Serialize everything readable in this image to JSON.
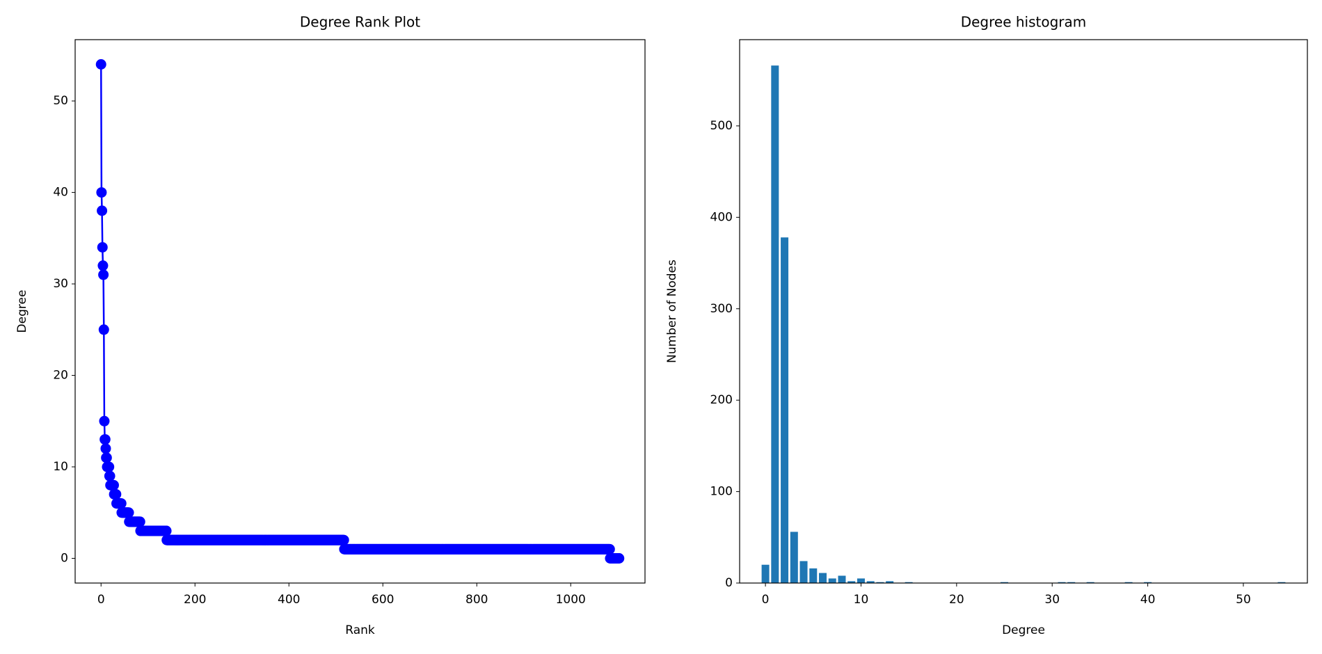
{
  "chart_data": [
    {
      "type": "line",
      "title": "Degree Rank Plot",
      "xlabel": "Rank",
      "ylabel": "Degree",
      "color": "#0000ff",
      "xlim": [
        -55.15,
        1158.15
      ],
      "ylim": [
        -2.7,
        56.7
      ],
      "xticks": [
        0,
        200,
        400,
        600,
        800,
        1000
      ],
      "yticks": [
        0,
        10,
        20,
        30,
        40,
        50
      ],
      "values": [
        54,
        40,
        38,
        34,
        32,
        31,
        25,
        15,
        13,
        13,
        12,
        11,
        11,
        10,
        10,
        10,
        10,
        10,
        9,
        9,
        8,
        8,
        8,
        8,
        8,
        8,
        8,
        8,
        7,
        7,
        7,
        7,
        7,
        6,
        6,
        6,
        6,
        6,
        6,
        6,
        6,
        6,
        6,
        6,
        5,
        5,
        5,
        5,
        5,
        5,
        5,
        5,
        5,
        5,
        5,
        5,
        5,
        5,
        5,
        5,
        4,
        4,
        4,
        4,
        4,
        4,
        4,
        4,
        4,
        4,
        4,
        4,
        4,
        4,
        4,
        4,
        4,
        4,
        4,
        4,
        4,
        4,
        4,
        4,
        3,
        3,
        3,
        3,
        3,
        3,
        3,
        3,
        3,
        3,
        3,
        3,
        3,
        3,
        3,
        3,
        3,
        3,
        3,
        3,
        3,
        3,
        3,
        3,
        3,
        3,
        3,
        3,
        3,
        3,
        3,
        3,
        3,
        3,
        3,
        3,
        3,
        3,
        3,
        3,
        3,
        3,
        3,
        3,
        3,
        3,
        3,
        3,
        3,
        3,
        3,
        3,
        3,
        3,
        3,
        3,
        2,
        2,
        2,
        2,
        2,
        2,
        2,
        2,
        2,
        2,
        2,
        2,
        2,
        2,
        2,
        2,
        2,
        2,
        2,
        2,
        2,
        2,
        2,
        2,
        2,
        2,
        2,
        2,
        2,
        2,
        2,
        2,
        2,
        2,
        2,
        2,
        2,
        2,
        2,
        2,
        2,
        2,
        2,
        2,
        2,
        2,
        2,
        2,
        2,
        2,
        2,
        2,
        2,
        2,
        2,
        2,
        2,
        2,
        2,
        2,
        2,
        2,
        2,
        2,
        2,
        2,
        2,
        2,
        2,
        2,
        2,
        2,
        2,
        2,
        2,
        2,
        2,
        2,
        2,
        2,
        2,
        2,
        2,
        2,
        2,
        2,
        2,
        2,
        2,
        2,
        2,
        2,
        2,
        2,
        2,
        2,
        2,
        2,
        2,
        2,
        2,
        2,
        2,
        2,
        2,
        2,
        2,
        2,
        2,
        2,
        2,
        2,
        2,
        2,
        2,
        2,
        2,
        2,
        2,
        2,
        2,
        2,
        2,
        2,
        2,
        2,
        2,
        2,
        2,
        2,
        2,
        2,
        2,
        2,
        2,
        2,
        2,
        2,
        2,
        2,
        2,
        2,
        2,
        2,
        2,
        2,
        2,
        2,
        2,
        2,
        2,
        2,
        2,
        2,
        2,
        2,
        2,
        2,
        2,
        2,
        2,
        2,
        2,
        2,
        2,
        2,
        2,
        2,
        2,
        2,
        2,
        2,
        2,
        2,
        2,
        2,
        2,
        2,
        2,
        2,
        2,
        2,
        2,
        2,
        2,
        2,
        2,
        2,
        2,
        2,
        2,
        2,
        2,
        2,
        2,
        2,
        2,
        2,
        2,
        2,
        2,
        2,
        2,
        2,
        2,
        2,
        2,
        2,
        2,
        2,
        2,
        2,
        2,
        2,
        2,
        2,
        2,
        2,
        2,
        2,
        2,
        2,
        2,
        2,
        2,
        2,
        2,
        2,
        2,
        2,
        2,
        2,
        2,
        2,
        2,
        2,
        2,
        2,
        2,
        2,
        2,
        2,
        2,
        2,
        2,
        2,
        2,
        2,
        2,
        2,
        2,
        2,
        2,
        2,
        2,
        2,
        2,
        2,
        2,
        2,
        2,
        2,
        2,
        2,
        2,
        2,
        2,
        2,
        2,
        2,
        2,
        2,
        2,
        2,
        2,
        2,
        2,
        2,
        2,
        2,
        2,
        2,
        2,
        2,
        2,
        2,
        2,
        2,
        2,
        2,
        2,
        2,
        2,
        2,
        2,
        2,
        2,
        2,
        2,
        2,
        2,
        2,
        2,
        2,
        2,
        2,
        2,
        2,
        2,
        2,
        2,
        2,
        2,
        2,
        2,
        2,
        2,
        2,
        2,
        2,
        2,
        2,
        2,
        2,
        2,
        2,
        2,
        2,
        2,
        2,
        2,
        2,
        2,
        2,
        2,
        2,
        2,
        2,
        2,
        2,
        2,
        2,
        2,
        2,
        2,
        2,
        2,
        2,
        2,
        2,
        2,
        2,
        2,
        2,
        2,
        2,
        2,
        2,
        2,
        2,
        2,
        2,
        2,
        2,
        2,
        2,
        2,
        2,
        2,
        2,
        2,
        2,
        2,
        2,
        2,
        2,
        2,
        2,
        1,
        1,
        1,
        1,
        1,
        1,
        1,
        1,
        1,
        1,
        1,
        1,
        1,
        1,
        1,
        1,
        1,
        1,
        1,
        1,
        1,
        1,
        1,
        1,
        1,
        1,
        1,
        1,
        1,
        1,
        1,
        1,
        1,
        1,
        1,
        1,
        1,
        1,
        1,
        1,
        1,
        1,
        1,
        1,
        1,
        1,
        1,
        1,
        1,
        1,
        1,
        1,
        1,
        1,
        1,
        1,
        1,
        1,
        1,
        1,
        1,
        1,
        1,
        1,
        1,
        1,
        1,
        1,
        1,
        1,
        1,
        1,
        1,
        1,
        1,
        1,
        1,
        1,
        1,
        1,
        1,
        1,
        1,
        1,
        1,
        1,
        1,
        1,
        1,
        1,
        1,
        1,
        1,
        1,
        1,
        1,
        1,
        1,
        1,
        1,
        1,
        1,
        1,
        1,
        1,
        1,
        1,
        1,
        1,
        1,
        1,
        1,
        1,
        1,
        1,
        1,
        1,
        1,
        1,
        1,
        1,
        1,
        1,
        1,
        1,
        1,
        1,
        1,
        1,
        1,
        1,
        1,
        1,
        1,
        1,
        1,
        1,
        1,
        1,
        1,
        1,
        1,
        1,
        1,
        1,
        1,
        1,
        1,
        1,
        1,
        1,
        1,
        1,
        1,
        1,
        1,
        1,
        1,
        1,
        1,
        1,
        1,
        1,
        1,
        1,
        1,
        1,
        1,
        1,
        1,
        1,
        1,
        1,
        1,
        1,
        1,
        1,
        1,
        1,
        1,
        1,
        1,
        1,
        1,
        1,
        1,
        1,
        1,
        1,
        1,
        1,
        1,
        1,
        1,
        1,
        1,
        1,
        1,
        1,
        1,
        1,
        1,
        1,
        1,
        1,
        1,
        1,
        1,
        1,
        1,
        1,
        1,
        1,
        1,
        1,
        1,
        1,
        1,
        1,
        1,
        1,
        1,
        1,
        1,
        1,
        1,
        1,
        1,
        1,
        1,
        1,
        1,
        1,
        1,
        1,
        1,
        1,
        1,
        1,
        1,
        1,
        1,
        1,
        1,
        1,
        1,
        1,
        1,
        1,
        1,
        1,
        1,
        1,
        1,
        1,
        1,
        1,
        1,
        1,
        1,
        1,
        1,
        1,
        1,
        1,
        1,
        1,
        1,
        1,
        1,
        1,
        1,
        1,
        1,
        1,
        1,
        1,
        1,
        1,
        1,
        1,
        1,
        1,
        1,
        1,
        1,
        1,
        1,
        1,
        1,
        1,
        1,
        1,
        1,
        1,
        1,
        1,
        1,
        1,
        1,
        1,
        1,
        1,
        1,
        1,
        1,
        1,
        1,
        1,
        1,
        1,
        1,
        1,
        1,
        1,
        1,
        1,
        1,
        1,
        1,
        1,
        1,
        1,
        1,
        1,
        1,
        1,
        1,
        1,
        1,
        1,
        1,
        1,
        1,
        1,
        1,
        1,
        1,
        1,
        1,
        1,
        1,
        1,
        1,
        1,
        1,
        1,
        1,
        1,
        1,
        1,
        1,
        1,
        1,
        1,
        1,
        1,
        1,
        1,
        1,
        1,
        1,
        1,
        1,
        1,
        1,
        1,
        1,
        1,
        1,
        1,
        1,
        1,
        1,
        1,
        1,
        1,
        1,
        1,
        1,
        1,
        1,
        1,
        1,
        1,
        1,
        1,
        1,
        1,
        1,
        1,
        1,
        1,
        1,
        1,
        1,
        1,
        1,
        1,
        1,
        1,
        1,
        1,
        1,
        1,
        1,
        1,
        1,
        1,
        1,
        1,
        1,
        1,
        1,
        1,
        1,
        1,
        1,
        1,
        1,
        1,
        1,
        1,
        1,
        1,
        1,
        1,
        1,
        1,
        1,
        1,
        1,
        1,
        1,
        1,
        1,
        1,
        1,
        1,
        1,
        1,
        1,
        1,
        1,
        1,
        1,
        1,
        1,
        1,
        1,
        1,
        1,
        1,
        1,
        1,
        1,
        1,
        1,
        1,
        1,
        1,
        1,
        1,
        1,
        1,
        1,
        1,
        1,
        1,
        1,
        1,
        1,
        1,
        1,
        1,
        1,
        1,
        1,
        1,
        1,
        1,
        1,
        1,
        1,
        1,
        1,
        1,
        1,
        1,
        1,
        1,
        1,
        1,
        1,
        1,
        1,
        1,
        1,
        1,
        1,
        1,
        1,
        1,
        1,
        1,
        1,
        1,
        1,
        1,
        1,
        1,
        1,
        1,
        1,
        1,
        1,
        1,
        1,
        1,
        1,
        1,
        1,
        1,
        1,
        1,
        1,
        1,
        1,
        1,
        1,
        1,
        1,
        1,
        1,
        1,
        1,
        1,
        1,
        1,
        1,
        1,
        1,
        1,
        1,
        1,
        1,
        1,
        1,
        1,
        1,
        1,
        1,
        1,
        1,
        1,
        1,
        1,
        1,
        1,
        1,
        1,
        1,
        1,
        1,
        1,
        1,
        0,
        0,
        0,
        0,
        0,
        0,
        0,
        0,
        0,
        0,
        0,
        0,
        0,
        0,
        0,
        0,
        0,
        0,
        0,
        0
      ]
    },
    {
      "type": "bar",
      "title": "Degree histogram",
      "xlabel": "Degree",
      "ylabel": "Number of Nodes",
      "color": "#1f77b4",
      "xlim": [
        -2.7,
        56.7
      ],
      "ylim": [
        0,
        594.3
      ],
      "xticks": [
        0,
        10,
        20,
        30,
        40,
        50
      ],
      "yticks": [
        0,
        100,
        200,
        300,
        400,
        500
      ],
      "x": [
        0,
        1,
        2,
        3,
        4,
        5,
        6,
        7,
        8,
        9,
        10,
        11,
        12,
        13,
        15,
        25,
        31,
        32,
        34,
        38,
        40,
        54
      ],
      "values": [
        20,
        566,
        378,
        56,
        24,
        16,
        11,
        5,
        8,
        2,
        5,
        2,
        1,
        2,
        1,
        1,
        1,
        1,
        1,
        1,
        1,
        1
      ]
    }
  ]
}
